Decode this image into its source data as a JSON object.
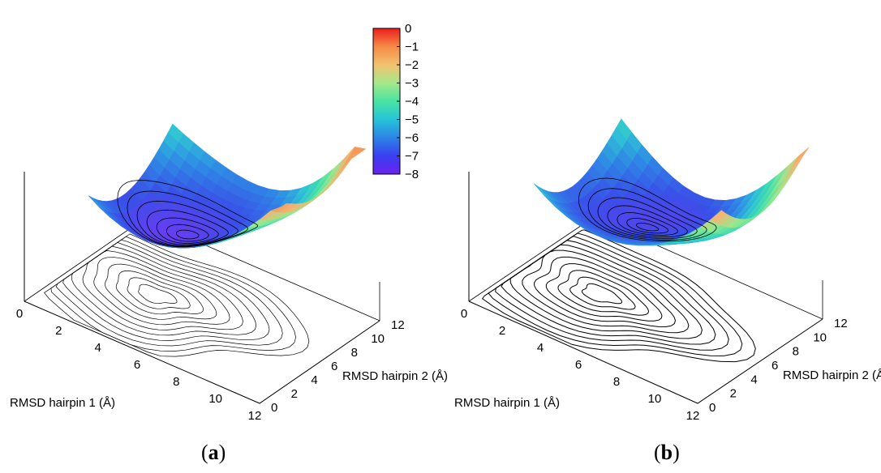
{
  "chart_data": [
    {
      "type": "surface3d",
      "panel": "(a)",
      "panel_letter": "a",
      "xlabel": "RMSD hairpin 1 (Å)",
      "ylabel": "RMSD hairpin 2 (Å)",
      "xlim": [
        0,
        12
      ],
      "ylim": [
        0,
        12
      ],
      "zlim": [
        -8,
        0
      ],
      "x_ticks": [
        "0",
        "2",
        "4",
        "6",
        "8",
        "10",
        "12"
      ],
      "y_ticks": [
        "0",
        "2",
        "4",
        "6",
        "8",
        "10",
        "12"
      ],
      "colorbar": {
        "min": -8,
        "max": 0,
        "ticks": [
          "0",
          "−1",
          "−2",
          "−3",
          "−4",
          "−5",
          "−6",
          "−7",
          "−8"
        ]
      },
      "colormap": [
        "#6a3cf2",
        "#3a4fe8",
        "#2f86e6",
        "#2fc3d6",
        "#46e0a9",
        "#9be88c",
        "#f4b473",
        "#f58a4a",
        "#ef2f1f"
      ],
      "minimum": {
        "x": 4.5,
        "y": 7.5,
        "z": -7.6
      },
      "projected_contours": true
    },
    {
      "type": "surface3d",
      "panel": "(b)",
      "panel_letter": "b",
      "xlabel": "RMSD hairpin 1 (Å)",
      "ylabel": "RMSD hairpin 2 (Å)",
      "xlim": [
        0,
        12
      ],
      "ylim": [
        0,
        12
      ],
      "zlim": [
        -8,
        0
      ],
      "x_ticks": [
        "0",
        "2",
        "4",
        "6",
        "8",
        "10",
        "12"
      ],
      "y_ticks": [
        "0",
        "2",
        "4",
        "6",
        "8",
        "10",
        "12"
      ],
      "colormap": [
        "#6a3cf2",
        "#3a4fe8",
        "#2f86e6",
        "#2fc3d6",
        "#46e0a9",
        "#9be88c",
        "#f4b473",
        "#f58a4a",
        "#ef2f1f"
      ],
      "minimum": {
        "x": 5,
        "y": 8,
        "z": -7.5
      },
      "projected_contours": true
    }
  ]
}
